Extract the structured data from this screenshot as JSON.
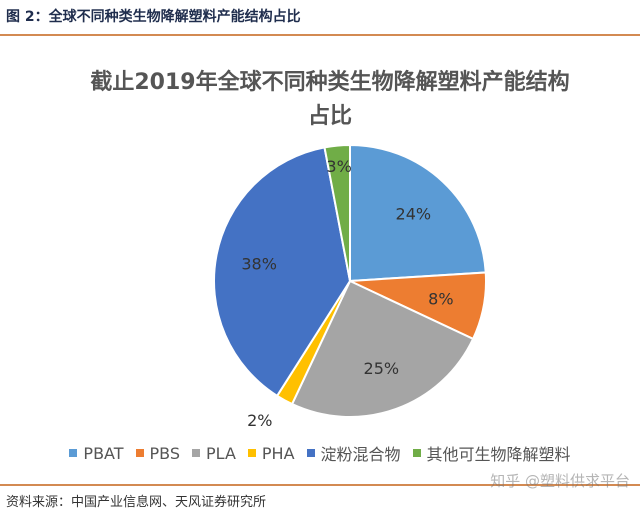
{
  "figure_caption": "图 2：全球不同种类生物降解塑料产能结构占比",
  "source": "资料来源：中国产业信息网、天风证券研究所",
  "watermark": "知乎 @塑料供求平台",
  "chart_data": {
    "type": "pie",
    "title": "截止2019年全球不同种类生物降解塑料产能结构占比",
    "title_lines": [
      "截止2019年全球不同种类生物降解塑料产能结构",
      "占比"
    ],
    "legend_position": "bottom",
    "slices": [
      {
        "name": "PBAT",
        "value": 24,
        "label": "24%",
        "color": "#5b9bd5"
      },
      {
        "name": "PBS",
        "value": 8,
        "label": "8%",
        "color": "#ed7d31"
      },
      {
        "name": "PLA",
        "value": 25,
        "label": "25%",
        "color": "#a5a5a5"
      },
      {
        "name": "PHA",
        "value": 2,
        "label": "2%",
        "color": "#ffc000"
      },
      {
        "name": "淀粉混合物",
        "value": 38,
        "label": "38%",
        "color": "#4472c4"
      },
      {
        "name": "其他可生物降解塑料",
        "value": 3,
        "label": "3%",
        "color": "#70ad47"
      }
    ]
  }
}
